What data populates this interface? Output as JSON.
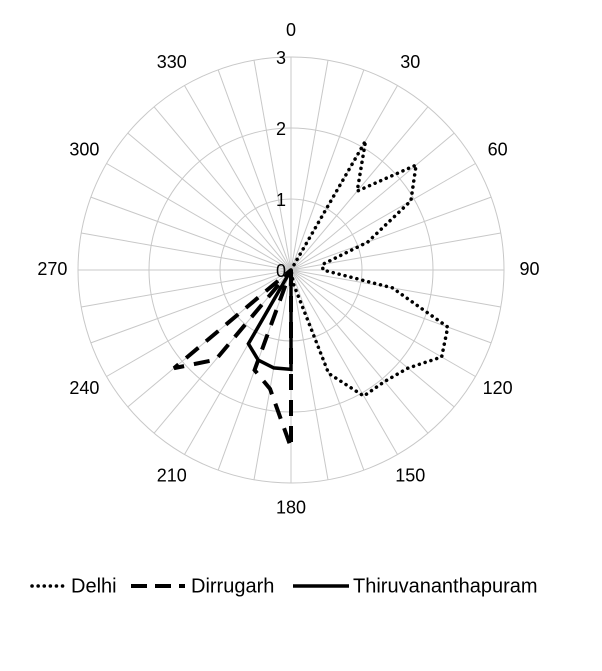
{
  "chart_data": {
    "type": "radar",
    "angle_ticks": [
      "0",
      "30",
      "60",
      "90",
      "120",
      "150",
      "180",
      "210",
      "240",
      "270",
      "300",
      "330"
    ],
    "radial_ticks": [
      "0",
      "1",
      "2",
      "3"
    ],
    "rlim": [
      0,
      3
    ],
    "angle_step_degrees": 10,
    "grid": true,
    "legend_position": "bottom",
    "series": [
      {
        "name": "Delhi",
        "style": "dotted",
        "color": "#000000",
        "angles": [
          0,
          10,
          20,
          30,
          40,
          50,
          60,
          70,
          80,
          90,
          100,
          110,
          120,
          130,
          140,
          150,
          160,
          170,
          180,
          190,
          200,
          210,
          220,
          230,
          240,
          250,
          260,
          270,
          280,
          290,
          300,
          310,
          320,
          330,
          340,
          350
        ],
        "values": [
          0,
          0,
          0,
          2.1,
          1.45,
          2.3,
          1.95,
          1.15,
          0.45,
          0.45,
          1.45,
          2.35,
          2.45,
          2.15,
          2.05,
          2.05,
          1.55,
          0.2,
          0,
          0,
          0,
          0,
          0,
          0,
          0,
          0,
          0,
          0,
          0,
          0,
          0,
          0,
          0,
          0,
          0,
          0
        ]
      },
      {
        "name": "Dirrugarh",
        "style": "dashed",
        "color": "#000000",
        "angles": [
          0,
          10,
          20,
          30,
          40,
          50,
          60,
          70,
          80,
          90,
          100,
          110,
          120,
          130,
          140,
          150,
          160,
          170,
          180,
          190,
          200,
          210,
          220,
          230,
          240,
          250,
          260,
          270,
          280,
          290,
          300,
          310,
          320,
          330,
          340,
          350
        ],
        "values": [
          0,
          0,
          0,
          0,
          0,
          0,
          0,
          0,
          0,
          0,
          0,
          0,
          0,
          0,
          0,
          0,
          0,
          0,
          2.5,
          1.7,
          1.5,
          0,
          1.65,
          2.15,
          0,
          0,
          0,
          0,
          0,
          0,
          0,
          0,
          0,
          0,
          0,
          0
        ]
      },
      {
        "name": "Thiruvananthapuram",
        "style": "solid",
        "color": "#000000",
        "angles": [
          0,
          10,
          20,
          30,
          40,
          50,
          60,
          70,
          80,
          90,
          100,
          110,
          120,
          130,
          140,
          150,
          160,
          170,
          180,
          190,
          200,
          210,
          220,
          230,
          240,
          250,
          260,
          270,
          280,
          290,
          300,
          310,
          320,
          330,
          340,
          350
        ],
        "values": [
          0,
          0,
          0,
          0,
          0,
          0,
          0,
          0,
          0,
          0,
          0,
          0,
          0,
          0,
          0,
          0,
          0,
          0,
          1.4,
          1.4,
          1.35,
          1.2,
          0,
          0,
          0,
          0,
          0,
          0,
          0,
          0,
          0,
          0,
          0,
          0,
          0,
          0
        ]
      }
    ]
  }
}
